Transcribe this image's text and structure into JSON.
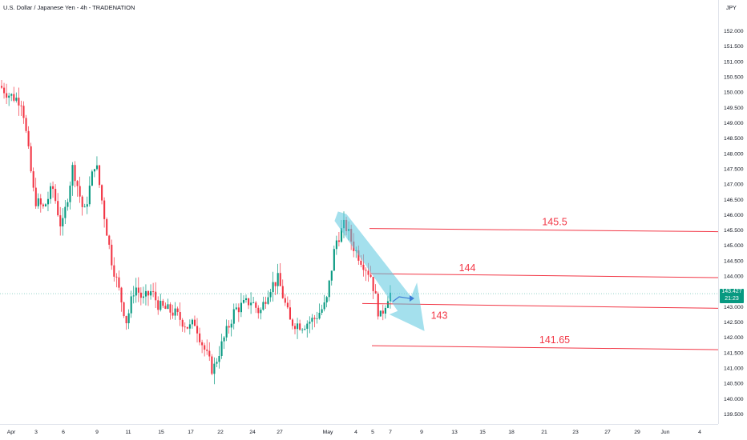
{
  "header": {
    "title": "U.S. Dollar / Japanese Yen - 4h - TRADENATION",
    "currency": "JPY"
  },
  "price_tag": {
    "price": "143.427",
    "countdown": "21:23"
  },
  "chart_data": {
    "type": "candlestick",
    "y_axis": {
      "range": [
        139.25,
        152.25
      ],
      "ticks": [
        "152.000",
        "151.500",
        "151.000",
        "150.500",
        "150.000",
        "149.500",
        "149.000",
        "148.500",
        "148.000",
        "147.500",
        "147.000",
        "146.500",
        "146.000",
        "145.500",
        "145.000",
        "144.500",
        "144.000",
        "143.500",
        "143.000",
        "142.500",
        "142.000",
        "141.500",
        "141.000",
        "140.500",
        "140.000",
        "139.500"
      ]
    },
    "x_axis": {
      "labels": [
        "Apr",
        "3",
        "6",
        "9",
        "11",
        "15",
        "17",
        "22",
        "24",
        "27",
        "May",
        "4",
        "5",
        "7",
        "9",
        "13",
        "15",
        "18",
        "21",
        "23",
        "27",
        "29",
        "Jun",
        "4"
      ],
      "label_dates": [
        "2025-04-01",
        "2025-04-03",
        "2025-04-06",
        "2025-04-09",
        "2025-04-11",
        "2025-04-15",
        "2025-04-17",
        "2025-04-22",
        "2025-04-24",
        "2025-04-27",
        "2025-05-01",
        "2025-05-04",
        "2025-05-05",
        "2025-05-07",
        "2025-05-09",
        "2025-05-13",
        "2025-05-15",
        "2025-05-18",
        "2025-05-21",
        "2025-05-23",
        "2025-05-27",
        "2025-05-29",
        "2025-06-01",
        "2025-06-04"
      ]
    },
    "current_price": 143.427,
    "path_points": [
      [
        "2025-03-31",
        150.2
      ],
      [
        "2025-04-01",
        149.9
      ],
      [
        "2025-04-02",
        149.7
      ],
      [
        "2025-04-03",
        146.5
      ],
      [
        "2025-04-04",
        146.2
      ],
      [
        "2025-04-05",
        146.9
      ],
      [
        "2025-04-06",
        145.5
      ],
      [
        "2025-04-07",
        147.6
      ],
      [
        "2025-04-08",
        146.0
      ],
      [
        "2025-04-09",
        147.8
      ],
      [
        "2025-04-10",
        144.6
      ],
      [
        "2025-04-11",
        142.5
      ],
      [
        "2025-04-12",
        143.7
      ],
      [
        "2025-04-13",
        143.2
      ],
      [
        "2025-04-14",
        143.5
      ],
      [
        "2025-04-15",
        143.0
      ],
      [
        "2025-04-16",
        142.8
      ],
      [
        "2025-04-17",
        142.3
      ],
      [
        "2025-04-18",
        142.5
      ],
      [
        "2025-04-19",
        141.9
      ],
      [
        "2025-04-20",
        141.4
      ],
      [
        "2025-04-21",
        140.9
      ],
      [
        "2025-04-22",
        141.5
      ],
      [
        "2025-04-23",
        142.9
      ],
      [
        "2025-04-24",
        143.2
      ],
      [
        "2025-04-25",
        142.8
      ],
      [
        "2025-04-26",
        143.6
      ],
      [
        "2025-04-27",
        143.9
      ],
      [
        "2025-04-28",
        142.5
      ],
      [
        "2025-04-29",
        142.4
      ],
      [
        "2025-04-30",
        142.6
      ],
      [
        "2025-05-01",
        143.1
      ],
      [
        "2025-05-02",
        145.1
      ],
      [
        "2025-05-03",
        145.7
      ],
      [
        "2025-05-04",
        144.9
      ],
      [
        "2025-05-05",
        144.0
      ],
      [
        "2025-05-06",
        142.6
      ],
      [
        "2025-05-07",
        143.43
      ]
    ],
    "horizontal_levels": [
      {
        "value": 145.5,
        "label": "145.5"
      },
      {
        "value": 144.0,
        "label": "144"
      },
      {
        "value": 143.0,
        "label": "143"
      },
      {
        "value": 141.65,
        "label": "141.65"
      }
    ],
    "annotations": [
      {
        "type": "arrow",
        "direction": "down",
        "from": [
          "2025-05-04",
          146.0
        ],
        "to": [
          "2025-05-09",
          142.2
        ],
        "color": "#5bc8e0"
      },
      {
        "type": "arrow",
        "direction": "right-up",
        "from": [
          "2025-05-07",
          143.0
        ],
        "to": [
          "2025-05-08",
          143.4
        ],
        "color": "#3d7dd6"
      }
    ],
    "colors": {
      "up": "#089981",
      "down": "#f23645",
      "level": "#f23645",
      "current": "#089981"
    },
    "grid": false
  }
}
